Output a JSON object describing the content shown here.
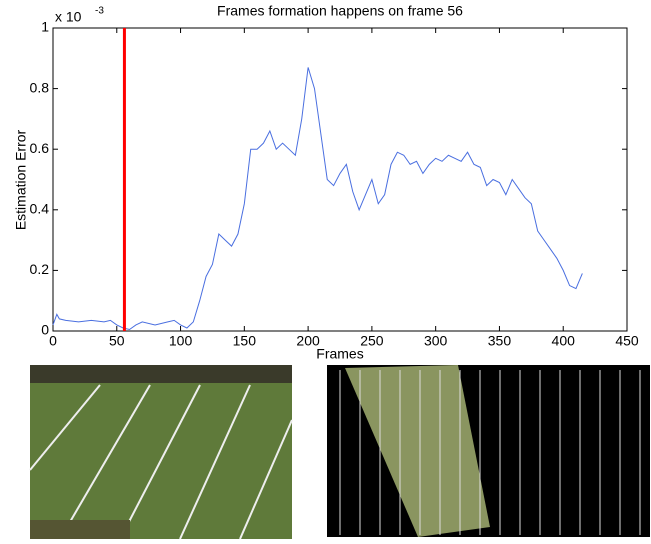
{
  "chart_data": {
    "type": "line",
    "title": "Frames formation happens on frame 56",
    "x_label": "Frames",
    "y_label": "Estimation Error",
    "y_scale_label": {
      "base": "x 10",
      "exponent": "-3"
    },
    "xlim": [
      0,
      450
    ],
    "xticks": [
      0,
      50,
      100,
      150,
      200,
      250,
      300,
      350,
      400,
      450
    ],
    "ylim": [
      0,
      1
    ],
    "yticks": [
      0,
      0.2,
      0.4,
      0.6,
      0.8,
      1
    ],
    "marker_x": 56,
    "marker_color": "#ff0000",
    "series": [
      {
        "color": "#4a6fe0",
        "x": [
          0,
          3,
          5,
          10,
          20,
          30,
          40,
          45,
          50,
          55,
          60,
          65,
          70,
          80,
          90,
          95,
          100,
          105,
          110,
          115,
          120,
          125,
          130,
          135,
          140,
          145,
          150,
          155,
          160,
          165,
          170,
          175,
          180,
          185,
          190,
          195,
          200,
          205,
          210,
          215,
          220,
          225,
          230,
          235,
          240,
          245,
          250,
          255,
          260,
          265,
          270,
          275,
          280,
          285,
          290,
          295,
          300,
          305,
          310,
          315,
          320,
          325,
          330,
          335,
          340,
          345,
          350,
          355,
          360,
          365,
          370,
          375,
          380,
          385,
          390,
          395,
          400,
          405,
          410,
          415
        ],
        "values": [
          0.02,
          0.055,
          0.04,
          0.035,
          0.03,
          0.035,
          0.03,
          0.035,
          0.02,
          0.01,
          0.005,
          0.02,
          0.03,
          0.02,
          0.03,
          0.035,
          0.02,
          0.01,
          0.03,
          0.1,
          0.18,
          0.22,
          0.32,
          0.3,
          0.28,
          0.32,
          0.42,
          0.6,
          0.6,
          0.62,
          0.66,
          0.6,
          0.62,
          0.6,
          0.58,
          0.7,
          0.87,
          0.8,
          0.65,
          0.5,
          0.48,
          0.52,
          0.55,
          0.46,
          0.4,
          0.45,
          0.5,
          0.42,
          0.45,
          0.55,
          0.59,
          0.58,
          0.55,
          0.56,
          0.52,
          0.55,
          0.57,
          0.56,
          0.58,
          0.57,
          0.56,
          0.59,
          0.55,
          0.54,
          0.48,
          0.5,
          0.49,
          0.45,
          0.5,
          0.47,
          0.44,
          0.42,
          0.33,
          0.3,
          0.27,
          0.24,
          0.2,
          0.15,
          0.14,
          0.19
        ]
      }
    ]
  }
}
